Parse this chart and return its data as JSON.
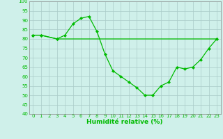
{
  "xlabel": "Humidité relative (%)",
  "background_color": "#cff0ea",
  "grid_color": "#aaccc8",
  "line_color": "#00bb00",
  "marker": "D",
  "markersize": 2,
  "linewidth": 0.9,
  "xlim": [
    -0.5,
    23.5
  ],
  "ylim": [
    40,
    100
  ],
  "yticks": [
    40,
    45,
    50,
    55,
    60,
    65,
    70,
    75,
    80,
    85,
    90,
    95,
    100
  ],
  "xticks": [
    0,
    1,
    2,
    3,
    4,
    5,
    6,
    7,
    8,
    9,
    10,
    11,
    12,
    13,
    14,
    15,
    16,
    17,
    18,
    19,
    20,
    21,
    22,
    23
  ],
  "series1": {
    "x": [
      0,
      1,
      3,
      4,
      5,
      6,
      7,
      8,
      9,
      10,
      11,
      12,
      13,
      14,
      15,
      16,
      17,
      18,
      19,
      20,
      21,
      22,
      23
    ],
    "y": [
      82,
      82,
      80,
      82,
      88,
      91,
      92,
      84,
      72,
      63,
      60,
      57,
      54,
      50,
      50,
      55,
      57,
      65,
      64,
      65,
      69,
      75,
      80
    ]
  },
  "series2": {
    "x": [
      0,
      1,
      3,
      23
    ],
    "y": [
      82,
      82,
      80,
      80
    ]
  },
  "xlabel_fontsize": 6.5,
  "tick_fontsize": 5
}
